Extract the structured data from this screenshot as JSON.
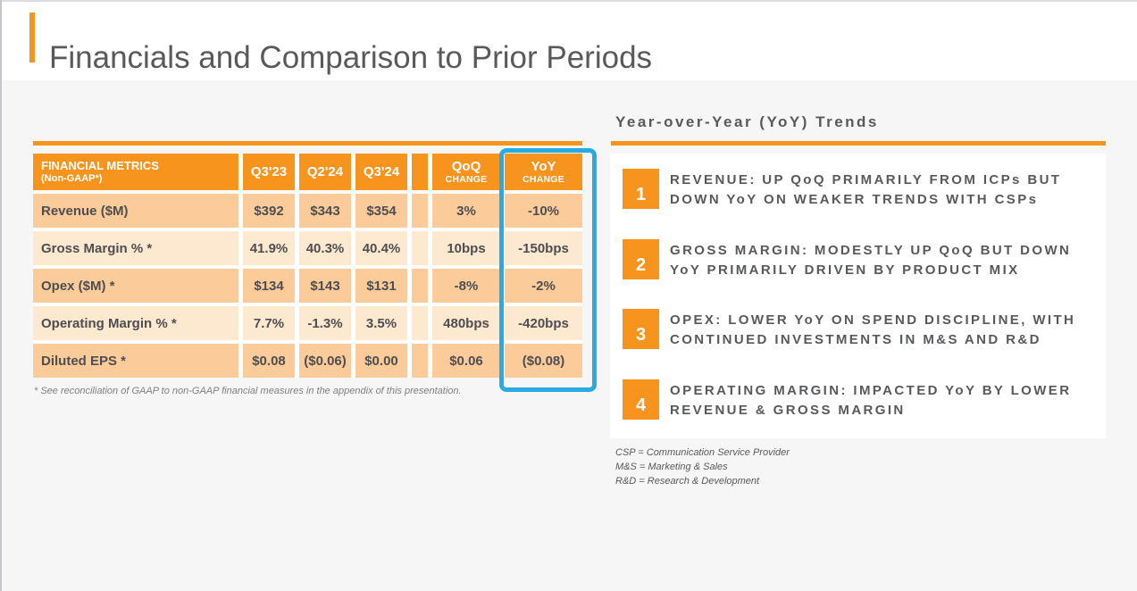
{
  "slide": {
    "title": "Financials and Comparison to Prior Periods"
  },
  "colors": {
    "accent_orange": "#F7941E",
    "highlight_cyan": "#29ABE2",
    "row_dark": "#FBCB9A",
    "row_light": "#FDE8D0",
    "text_dark_gray": "#58595B"
  },
  "table": {
    "header": {
      "metric_title": "FINANCIAL METRICS",
      "metric_subtitle": "(Non-GAAP*)",
      "periods": [
        "Q3'23",
        "Q2'24",
        "Q3'24"
      ],
      "qoq_title": "QoQ",
      "qoq_subtitle": "CHANGE",
      "yoy_title": "YoY",
      "yoy_subtitle": "CHANGE"
    },
    "rows": [
      {
        "metric": "Revenue ($M)",
        "values": [
          "$392",
          "$343",
          "$354",
          "3%",
          "-10%"
        ]
      },
      {
        "metric": "Gross Margin % *",
        "values": [
          "41.9%",
          "40.3%",
          "40.4%",
          "10bps",
          "-150bps"
        ]
      },
      {
        "metric": "Opex ($M) *",
        "values": [
          "$134",
          "$143",
          "$131",
          "-8%",
          "-2%"
        ]
      },
      {
        "metric": "Operating Margin % *",
        "values": [
          "7.7%",
          "-1.3%",
          "3.5%",
          "480bps",
          "-420bps"
        ]
      },
      {
        "metric": "Diluted EPS *",
        "values": [
          "$0.08",
          "($0.06)",
          "$0.00",
          "$0.06",
          "($0.08)"
        ]
      }
    ],
    "footnote": "* See reconciliation of GAAP to non-GAAP financial measures in the appendix of this presentation."
  },
  "trends": {
    "heading": "Year-over-Year (YoY) Trends",
    "items": [
      {
        "number": "1",
        "text": "REVENUE: UP QoQ PRIMARILY FROM ICPs BUT\nDOWN YoY ON WEAKER TRENDS WITH CSPs"
      },
      {
        "number": "2",
        "text": "GROSS MARGIN: MODESTLY UP QoQ BUT DOWN\nYoY PRIMARILY DRIVEN BY PRODUCT MIX"
      },
      {
        "number": "3",
        "text": "OPEX: LOWER YoY ON SPEND DISCIPLINE, WITH\nCONTINUED INVESTMENTS IN M&S AND R&D"
      },
      {
        "number": "4",
        "text": "OPERATING MARGIN: IMPACTED YoY BY LOWER\nREVENUE & GROSS MARGIN"
      }
    ],
    "legend": [
      "CSP = Communication Service Provider",
      "M&S = Marketing & Sales",
      "R&D = Research & Development"
    ]
  }
}
